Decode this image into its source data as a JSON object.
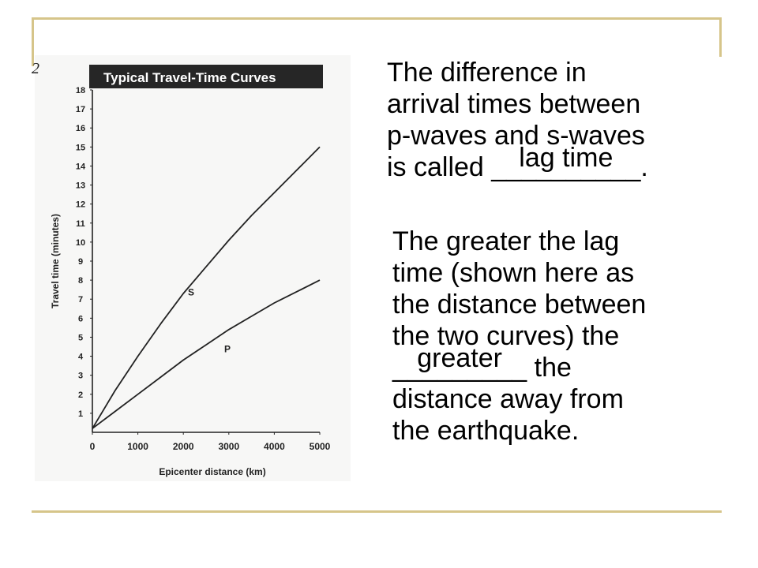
{
  "figure_label": "2",
  "text": {
    "p1_line1": "The difference in",
    "p1_line2": "arrival times between",
    "p1_line3": "p-waves and s-waves",
    "p1_line4_prefix": "is called ",
    "p1_blank": "__________",
    "p1_line4_suffix": ".",
    "answer1": "lag time",
    "p2_line1": "The greater the lag",
    "p2_line2": "time (shown here as",
    "p2_line3": "the distance between",
    "p2_line4": "the two curves) the",
    "p2_blank": "_________",
    "p2_line5_suffix": " the",
    "answer2": "greater",
    "p2_line6": "distance away from",
    "p2_line7": "the earthquake."
  },
  "chart_data": {
    "type": "line",
    "title": "Typical Travel-Time Curves",
    "xlabel": "Epicenter distance (km)",
    "ylabel": "Travel time (minutes)",
    "xlim": [
      0,
      5000
    ],
    "ylim": [
      0,
      18
    ],
    "x_ticks": [
      0,
      1000,
      2000,
      3000,
      4000,
      5000
    ],
    "y_ticks": [
      1,
      2,
      3,
      4,
      5,
      6,
      7,
      8,
      9,
      10,
      11,
      12,
      13,
      14,
      15,
      16,
      17,
      18
    ],
    "grid": false,
    "series": [
      {
        "name": "S",
        "color": "#222222",
        "x": [
          0,
          500,
          1000,
          1500,
          2000,
          2500,
          3000,
          3500,
          4000,
          4500,
          5000
        ],
        "y": [
          0.2,
          2.2,
          4.0,
          5.7,
          7.3,
          8.7,
          10.1,
          11.4,
          12.6,
          13.8,
          15.0
        ]
      },
      {
        "name": "P",
        "color": "#222222",
        "x": [
          0,
          500,
          1000,
          1500,
          2000,
          2500,
          3000,
          3500,
          4000,
          4500,
          5000
        ],
        "y": [
          0.2,
          1.1,
          2.0,
          2.9,
          3.8,
          4.6,
          5.4,
          6.1,
          6.8,
          7.4,
          8.0
        ]
      }
    ],
    "annotations": [
      {
        "text": "S",
        "x": 2100,
        "y": 7.2
      },
      {
        "text": "P",
        "x": 2900,
        "y": 4.2
      }
    ]
  }
}
